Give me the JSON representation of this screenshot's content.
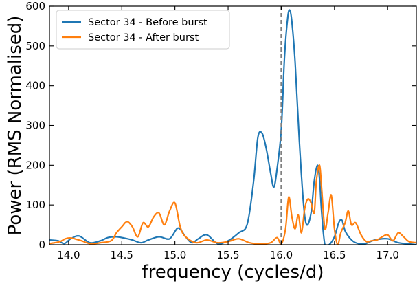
{
  "chart_data": {
    "type": "line",
    "xlabel": "frequency (cycles/d)",
    "ylabel": "Power (RMS Normalised)",
    "xlim": [
      13.82,
      17.27
    ],
    "ylim": [
      0,
      600
    ],
    "x_ticks": [
      14.0,
      14.5,
      15.0,
      15.5,
      16.0,
      16.5,
      17.0
    ],
    "x_tick_labels": [
      "14.0",
      "14.5",
      "15.0",
      "15.5",
      "16.0",
      "16.5",
      "17.0"
    ],
    "y_ticks": [
      0,
      100,
      200,
      300,
      400,
      500,
      600
    ],
    "y_tick_labels": [
      "0",
      "100",
      "200",
      "300",
      "400",
      "500",
      "600"
    ],
    "vline": {
      "x": 16.0,
      "style": "dashed",
      "color": "#808080"
    },
    "legend_position": "top-left",
    "series": [
      {
        "name": "Sector 34 - Before burst",
        "color": "#1f77b4",
        "x": [
          13.82,
          13.9,
          13.96,
          14.02,
          14.1,
          14.2,
          14.3,
          14.37,
          14.45,
          14.52,
          14.6,
          14.68,
          14.75,
          14.85,
          14.95,
          15.03,
          15.1,
          15.16,
          15.22,
          15.3,
          15.4,
          15.5,
          15.6,
          15.68,
          15.74,
          15.78,
          15.82,
          15.86,
          15.9,
          15.93,
          15.96,
          16.0,
          16.03,
          16.06,
          16.08,
          16.1,
          16.13,
          16.17,
          16.21,
          16.24,
          16.28,
          16.31,
          16.34,
          16.36,
          16.38,
          16.41,
          16.45,
          16.5,
          16.54,
          16.57,
          16.6,
          16.65,
          16.7,
          16.78,
          16.88,
          17.0,
          17.1,
          17.2,
          17.27
        ],
        "values": [
          12,
          10,
          3,
          15,
          22,
          5,
          10,
          18,
          20,
          17,
          12,
          5,
          12,
          20,
          15,
          42,
          20,
          5,
          15,
          25,
          3,
          10,
          30,
          52,
          160,
          270,
          280,
          240,
          180,
          145,
          190,
          290,
          470,
          570,
          590,
          560,
          460,
          260,
          100,
          50,
          80,
          160,
          200,
          165,
          80,
          0,
          0,
          20,
          55,
          62,
          35,
          15,
          5,
          2,
          12,
          15,
          5,
          2,
          0
        ]
      },
      {
        "name": "Sector 34 - After burst",
        "color": "#ff7f0e",
        "x": [
          13.82,
          13.87,
          13.92,
          13.97,
          14.02,
          14.07,
          14.12,
          14.17,
          14.22,
          14.3,
          14.4,
          14.45,
          14.5,
          14.55,
          14.6,
          14.65,
          14.7,
          14.75,
          14.8,
          14.85,
          14.9,
          14.95,
          15.0,
          15.05,
          15.1,
          15.2,
          15.3,
          15.4,
          15.5,
          15.6,
          15.7,
          15.8,
          15.9,
          15.96,
          16.0,
          16.04,
          16.07,
          16.1,
          16.13,
          16.16,
          16.19,
          16.22,
          16.25,
          16.28,
          16.31,
          16.33,
          16.36,
          16.38,
          16.41,
          16.44,
          16.47,
          16.5,
          16.53,
          16.56,
          16.6,
          16.63,
          16.66,
          16.7,
          16.75,
          16.8,
          16.85,
          16.9,
          16.95,
          17.0,
          17.05,
          17.1,
          17.15,
          17.2,
          17.27
        ],
        "values": [
          3,
          5,
          8,
          15,
          17,
          14,
          10,
          5,
          2,
          5,
          10,
          30,
          45,
          58,
          45,
          20,
          55,
          45,
          70,
          80,
          50,
          85,
          105,
          45,
          20,
          5,
          12,
          5,
          8,
          15,
          5,
          2,
          5,
          18,
          2,
          40,
          120,
          70,
          40,
          75,
          30,
          90,
          115,
          105,
          80,
          160,
          200,
          140,
          40,
          80,
          125,
          40,
          0,
          30,
          55,
          85,
          50,
          55,
          25,
          8,
          10,
          12,
          20,
          25,
          10,
          30,
          20,
          8,
          5
        ]
      }
    ]
  }
}
